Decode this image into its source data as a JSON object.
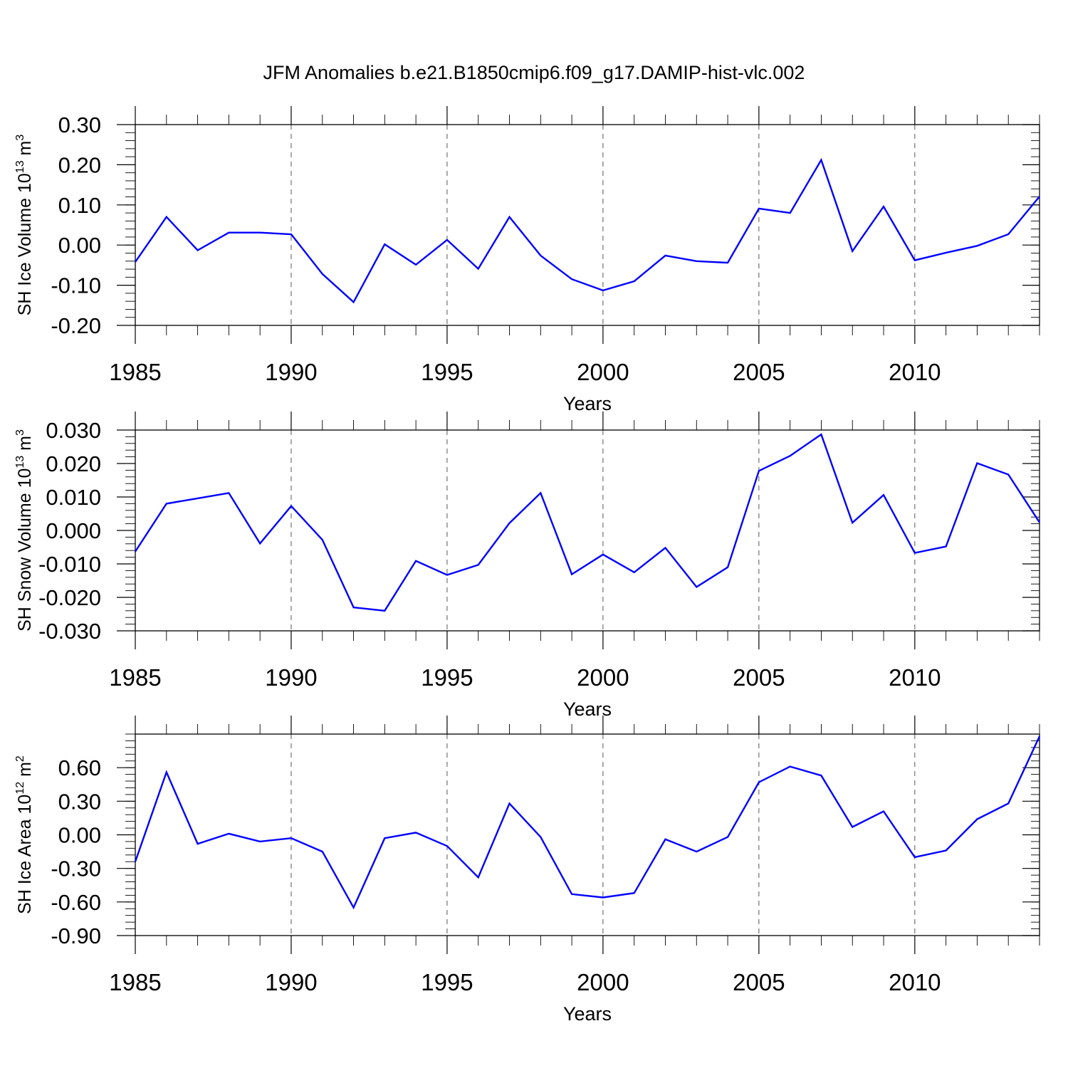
{
  "figure": {
    "title": "JFM Anomalies b.e21.B1850cmip6.f09_g17.DAMIP-hist-vlc.002",
    "line_color": "#0000ff"
  },
  "chart_data": [
    {
      "type": "line",
      "xlabel": "Years",
      "ylabel_main": "SH Ice Volume 10",
      "ylabel_exp": "13",
      "ylabel_unit": " m",
      "ylabel_unit_exp": "3",
      "xlim": [
        1985,
        2014
      ],
      "ylim": [
        -0.2,
        0.3
      ],
      "xticks": [
        1985,
        1990,
        1995,
        2000,
        2005,
        2010
      ],
      "xtick_labels": [
        "1985",
        "1990",
        "1995",
        "2000",
        "2005",
        "2010"
      ],
      "yticks": [
        -0.2,
        -0.1,
        0.0,
        0.1,
        0.2,
        0.3
      ],
      "ytick_labels": [
        "-0.20",
        "-0.10",
        "0.00",
        "0.10",
        "0.20",
        "0.30"
      ],
      "yminor_step": 0.02,
      "grid": "vertical dashed at major x ticks",
      "x": [
        1985,
        1986,
        1987,
        1988,
        1989,
        1990,
        1991,
        1992,
        1993,
        1994,
        1995,
        1996,
        1997,
        1998,
        1999,
        2000,
        2001,
        2002,
        2003,
        2004,
        2005,
        2006,
        2007,
        2008,
        2009,
        2010,
        2011,
        2012,
        2013,
        2014
      ],
      "values": [
        -0.042,
        0.07,
        -0.013,
        0.031,
        0.031,
        0.027,
        -0.072,
        -0.142,
        0.002,
        -0.049,
        0.013,
        -0.059,
        0.07,
        -0.026,
        -0.085,
        -0.113,
        -0.09,
        -0.026,
        -0.04,
        -0.044,
        0.091,
        0.08,
        0.212,
        -0.015,
        0.096,
        -0.038,
        -0.019,
        -0.002,
        0.027,
        0.121
      ]
    },
    {
      "type": "line",
      "xlabel": "Years",
      "ylabel_main": "SH Snow Volume 10",
      "ylabel_exp": "13",
      "ylabel_unit": " m",
      "ylabel_unit_exp": "3",
      "xlim": [
        1985,
        2014
      ],
      "ylim": [
        -0.03,
        0.03
      ],
      "xticks": [
        1985,
        1990,
        1995,
        2000,
        2005,
        2010
      ],
      "xtick_labels": [
        "1985",
        "1990",
        "1995",
        "2000",
        "2005",
        "2010"
      ],
      "yticks": [
        -0.03,
        -0.02,
        -0.01,
        0.0,
        0.01,
        0.02,
        0.03
      ],
      "ytick_labels": [
        "-0.030",
        "-0.020",
        "-0.010",
        "0.000",
        "0.010",
        "0.020",
        "0.030"
      ],
      "yminor_step": 0.002,
      "grid": "vertical dashed at major x ticks",
      "x": [
        1985,
        1986,
        1987,
        1988,
        1989,
        1990,
        1991,
        1992,
        1993,
        1994,
        1995,
        1996,
        1997,
        1998,
        1999,
        2000,
        2001,
        2002,
        2003,
        2004,
        2005,
        2006,
        2007,
        2008,
        2009,
        2010,
        2011,
        2012,
        2013,
        2014
      ],
      "values": [
        -0.0063,
        0.008,
        0.0096,
        0.0112,
        -0.0039,
        0.0073,
        -0.0028,
        -0.023,
        -0.024,
        -0.0091,
        -0.0133,
        -0.0103,
        0.0022,
        0.0112,
        -0.0131,
        -0.0072,
        -0.0125,
        -0.0052,
        -0.0169,
        -0.011,
        0.0178,
        0.0223,
        0.0287,
        0.0023,
        0.0106,
        -0.0067,
        -0.0048,
        0.0201,
        0.0167,
        0.0024
      ]
    },
    {
      "type": "line",
      "xlabel": "Years",
      "ylabel_main": "SH Ice Area 10",
      "ylabel_exp": "12",
      "ylabel_unit": " m",
      "ylabel_unit_exp": "2",
      "xlim": [
        1985,
        2014
      ],
      "ylim": [
        -0.9,
        0.9
      ],
      "xticks": [
        1985,
        1990,
        1995,
        2000,
        2005,
        2010
      ],
      "xtick_labels": [
        "1985",
        "1990",
        "1995",
        "2000",
        "2005",
        "2010"
      ],
      "yticks": [
        -0.9,
        -0.6,
        -0.3,
        0.0,
        0.3,
        0.6
      ],
      "ytick_labels": [
        "-0.90",
        "-0.60",
        "-0.30",
        "0.00",
        "0.30",
        "0.60"
      ],
      "yminor_step": 0.06,
      "grid": "vertical dashed at major x ticks",
      "x": [
        1985,
        1986,
        1987,
        1988,
        1989,
        1990,
        1991,
        1992,
        1993,
        1994,
        1995,
        1996,
        1997,
        1998,
        1999,
        2000,
        2001,
        2002,
        2003,
        2004,
        2005,
        2006,
        2007,
        2008,
        2009,
        2010,
        2011,
        2012,
        2013,
        2014
      ],
      "values": [
        -0.24,
        0.56,
        -0.08,
        0.01,
        -0.06,
        -0.03,
        -0.15,
        -0.65,
        -0.03,
        0.02,
        -0.1,
        -0.38,
        0.28,
        -0.02,
        -0.53,
        -0.56,
        -0.52,
        -0.04,
        -0.15,
        -0.02,
        0.47,
        0.61,
        0.53,
        0.07,
        0.21,
        -0.2,
        -0.14,
        0.14,
        0.28,
        0.88
      ]
    }
  ]
}
